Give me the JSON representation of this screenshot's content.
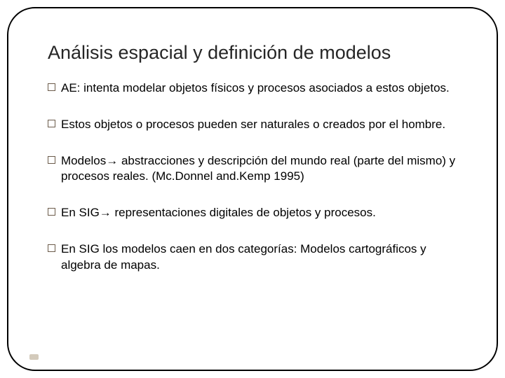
{
  "slide": {
    "title": "Análisis espacial y definición de modelos",
    "title_color": "#262626",
    "title_fontsize": 27,
    "border_color": "#000000",
    "border_radius": 40,
    "background_color": "#ffffff",
    "bullet_marker_border": "#6b5b4a",
    "body_fontsize": 17,
    "bullets": [
      {
        "text": "AE: intenta modelar objetos físicos y procesos asociados a estos objetos."
      },
      {
        "text": "Estos objetos o procesos pueden ser naturales o creados por el hombre."
      },
      {
        "text": "Modelos→ abstracciones y descripción del mundo real (parte del mismo) y procesos reales. (Mc.Donnel and.Kemp 1995)"
      },
      {
        "text": "En SIG→ representaciones digitales de objetos y procesos."
      },
      {
        "text": "En SIG los modelos caen en dos categorías: Modelos cartográficos y algebra de mapas."
      }
    ],
    "footer_mark_color": "#d3cabb"
  }
}
